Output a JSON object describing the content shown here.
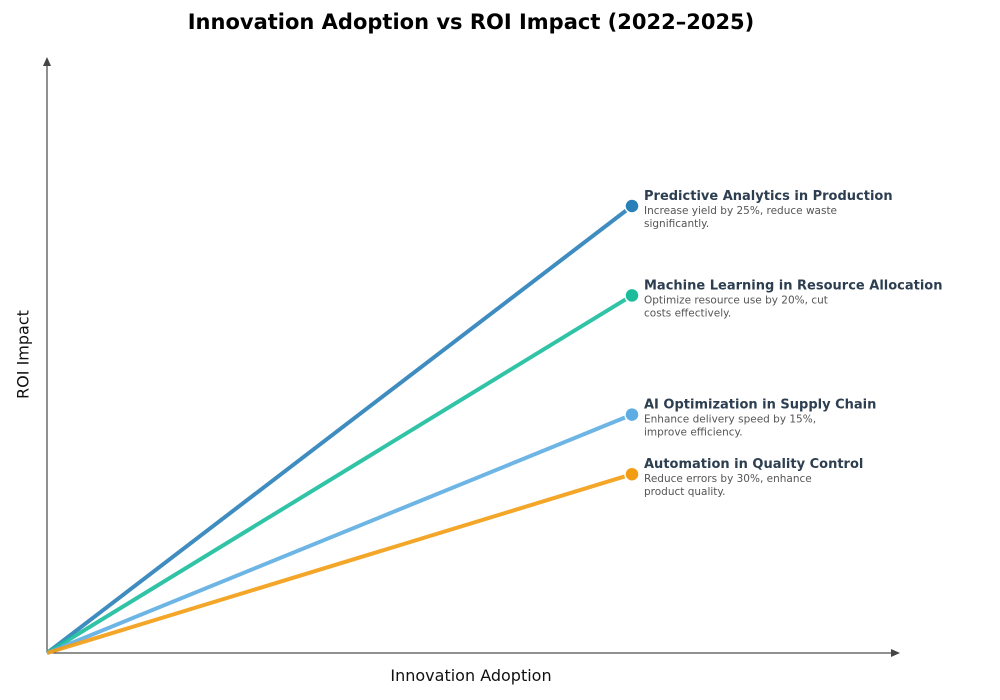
{
  "chart_data": {
    "type": "line",
    "title": "Innovation Adoption vs ROI Impact (2022–2025)",
    "xlabel": "Innovation Adoption",
    "ylabel": "ROI Impact",
    "xlim": [
      0,
      10.2
    ],
    "ylim": [
      0,
      10
    ],
    "grid": false,
    "ticks": false,
    "series": [
      {
        "name": "Predictive Analytics in Production",
        "description": "Increase yield by 25%, reduce waste significantly.",
        "desc_lines": [
          "Increase yield by 25%, reduce waste",
          "significantly."
        ],
        "color": "#2980b9",
        "x": [
          0,
          7
        ],
        "y": [
          0,
          7.5
        ]
      },
      {
        "name": "Machine Learning in Resource Allocation",
        "description": "Optimize resource use by 20%, cut costs effectively.",
        "desc_lines": [
          "Optimize resource use by 20%, cut",
          "costs effectively."
        ],
        "color": "#1abc9c",
        "x": [
          0,
          7
        ],
        "y": [
          0,
          6
        ]
      },
      {
        "name": "AI Optimization in Supply Chain",
        "description": "Enhance delivery speed by 15%, improve efficiency.",
        "desc_lines": [
          "Enhance delivery speed by 15%,",
          "improve efficiency."
        ],
        "color": "#5dade2",
        "x": [
          0,
          7
        ],
        "y": [
          0,
          4
        ]
      },
      {
        "name": "Automation in Quality Control",
        "description": "Reduce errors by 30%, enhance product quality.",
        "desc_lines": [
          "Reduce errors by 30%, enhance",
          "product quality."
        ],
        "color": "#f39c12",
        "x": [
          0,
          7
        ],
        "y": [
          0,
          3
        ]
      }
    ]
  }
}
